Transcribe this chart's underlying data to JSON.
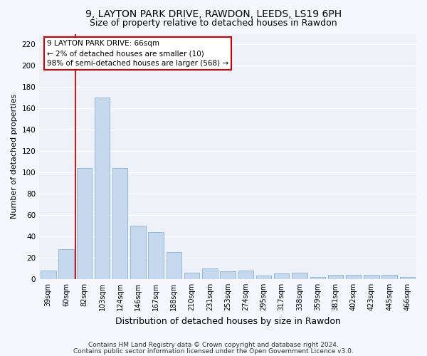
{
  "title1": "9, LAYTON PARK DRIVE, RAWDON, LEEDS, LS19 6PH",
  "title2": "Size of property relative to detached houses in Rawdon",
  "xlabel": "Distribution of detached houses by size in Rawdon",
  "ylabel": "Number of detached properties",
  "categories": [
    "39sqm",
    "60sqm",
    "82sqm",
    "103sqm",
    "124sqm",
    "146sqm",
    "167sqm",
    "188sqm",
    "210sqm",
    "231sqm",
    "253sqm",
    "274sqm",
    "295sqm",
    "317sqm",
    "338sqm",
    "359sqm",
    "381sqm",
    "402sqm",
    "423sqm",
    "445sqm",
    "466sqm"
  ],
  "values": [
    8,
    28,
    104,
    170,
    104,
    50,
    44,
    25,
    6,
    10,
    7,
    8,
    3,
    5,
    6,
    2,
    4,
    4,
    4,
    4,
    2
  ],
  "bar_color": "#c5d8ed",
  "bar_edge_color": "#8ab4d4",
  "highlight_color": "#cc0000",
  "annotation_line1": "9 LAYTON PARK DRIVE: 66sqm",
  "annotation_line2": "← 2% of detached houses are smaller (10)",
  "annotation_line3": "98% of semi-detached houses are larger (568) →",
  "annotation_box_color": "#ffffff",
  "annotation_box_edge": "#cc0000",
  "ylim": [
    0,
    230
  ],
  "yticks": [
    0,
    20,
    40,
    60,
    80,
    100,
    120,
    140,
    160,
    180,
    200,
    220
  ],
  "footer1": "Contains HM Land Registry data © Crown copyright and database right 2024.",
  "footer2": "Contains public sector information licensed under the Open Government Licence v3.0.",
  "bg_color": "#eef2f8",
  "fig_bg_color": "#f5f7fc",
  "grid_color": "#ffffff",
  "title1_fontsize": 10,
  "title2_fontsize": 9,
  "ylabel_fontsize": 8,
  "xlabel_fontsize": 9
}
